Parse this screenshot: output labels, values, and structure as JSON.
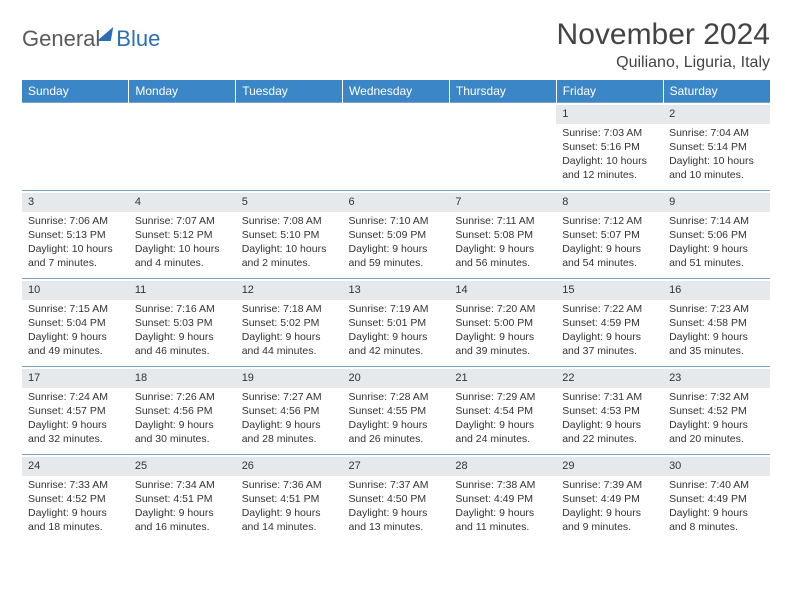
{
  "brand": {
    "word1": "General",
    "word2": "Blue"
  },
  "header": {
    "title": "November 2024",
    "location": "Quiliano, Liguria, Italy"
  },
  "colors": {
    "header_bg": "#3b86c7",
    "header_text": "#ffffff",
    "daynum_bg": "#e6e9eb",
    "border": "#7aa0c2",
    "brand_blue": "#2a6fb5",
    "text": "#333333",
    "background": "#ffffff"
  },
  "typography": {
    "title_fontsize": 30,
    "location_fontsize": 16,
    "dayheader_fontsize": 12,
    "cell_fontsize": 10.5,
    "daynum_fontsize": 11
  },
  "calendar": {
    "type": "table",
    "columns": [
      "Sunday",
      "Monday",
      "Tuesday",
      "Wednesday",
      "Thursday",
      "Friday",
      "Saturday"
    ],
    "weeks": [
      [
        null,
        null,
        null,
        null,
        null,
        {
          "n": "1",
          "sr": "Sunrise: 7:03 AM",
          "ss": "Sunset: 5:16 PM",
          "d1": "Daylight: 10 hours",
          "d2": "and 12 minutes."
        },
        {
          "n": "2",
          "sr": "Sunrise: 7:04 AM",
          "ss": "Sunset: 5:14 PM",
          "d1": "Daylight: 10 hours",
          "d2": "and 10 minutes."
        }
      ],
      [
        {
          "n": "3",
          "sr": "Sunrise: 7:06 AM",
          "ss": "Sunset: 5:13 PM",
          "d1": "Daylight: 10 hours",
          "d2": "and 7 minutes."
        },
        {
          "n": "4",
          "sr": "Sunrise: 7:07 AM",
          "ss": "Sunset: 5:12 PM",
          "d1": "Daylight: 10 hours",
          "d2": "and 4 minutes."
        },
        {
          "n": "5",
          "sr": "Sunrise: 7:08 AM",
          "ss": "Sunset: 5:10 PM",
          "d1": "Daylight: 10 hours",
          "d2": "and 2 minutes."
        },
        {
          "n": "6",
          "sr": "Sunrise: 7:10 AM",
          "ss": "Sunset: 5:09 PM",
          "d1": "Daylight: 9 hours",
          "d2": "and 59 minutes."
        },
        {
          "n": "7",
          "sr": "Sunrise: 7:11 AM",
          "ss": "Sunset: 5:08 PM",
          "d1": "Daylight: 9 hours",
          "d2": "and 56 minutes."
        },
        {
          "n": "8",
          "sr": "Sunrise: 7:12 AM",
          "ss": "Sunset: 5:07 PM",
          "d1": "Daylight: 9 hours",
          "d2": "and 54 minutes."
        },
        {
          "n": "9",
          "sr": "Sunrise: 7:14 AM",
          "ss": "Sunset: 5:06 PM",
          "d1": "Daylight: 9 hours",
          "d2": "and 51 minutes."
        }
      ],
      [
        {
          "n": "10",
          "sr": "Sunrise: 7:15 AM",
          "ss": "Sunset: 5:04 PM",
          "d1": "Daylight: 9 hours",
          "d2": "and 49 minutes."
        },
        {
          "n": "11",
          "sr": "Sunrise: 7:16 AM",
          "ss": "Sunset: 5:03 PM",
          "d1": "Daylight: 9 hours",
          "d2": "and 46 minutes."
        },
        {
          "n": "12",
          "sr": "Sunrise: 7:18 AM",
          "ss": "Sunset: 5:02 PM",
          "d1": "Daylight: 9 hours",
          "d2": "and 44 minutes."
        },
        {
          "n": "13",
          "sr": "Sunrise: 7:19 AM",
          "ss": "Sunset: 5:01 PM",
          "d1": "Daylight: 9 hours",
          "d2": "and 42 minutes."
        },
        {
          "n": "14",
          "sr": "Sunrise: 7:20 AM",
          "ss": "Sunset: 5:00 PM",
          "d1": "Daylight: 9 hours",
          "d2": "and 39 minutes."
        },
        {
          "n": "15",
          "sr": "Sunrise: 7:22 AM",
          "ss": "Sunset: 4:59 PM",
          "d1": "Daylight: 9 hours",
          "d2": "and 37 minutes."
        },
        {
          "n": "16",
          "sr": "Sunrise: 7:23 AM",
          "ss": "Sunset: 4:58 PM",
          "d1": "Daylight: 9 hours",
          "d2": "and 35 minutes."
        }
      ],
      [
        {
          "n": "17",
          "sr": "Sunrise: 7:24 AM",
          "ss": "Sunset: 4:57 PM",
          "d1": "Daylight: 9 hours",
          "d2": "and 32 minutes."
        },
        {
          "n": "18",
          "sr": "Sunrise: 7:26 AM",
          "ss": "Sunset: 4:56 PM",
          "d1": "Daylight: 9 hours",
          "d2": "and 30 minutes."
        },
        {
          "n": "19",
          "sr": "Sunrise: 7:27 AM",
          "ss": "Sunset: 4:56 PM",
          "d1": "Daylight: 9 hours",
          "d2": "and 28 minutes."
        },
        {
          "n": "20",
          "sr": "Sunrise: 7:28 AM",
          "ss": "Sunset: 4:55 PM",
          "d1": "Daylight: 9 hours",
          "d2": "and 26 minutes."
        },
        {
          "n": "21",
          "sr": "Sunrise: 7:29 AM",
          "ss": "Sunset: 4:54 PM",
          "d1": "Daylight: 9 hours",
          "d2": "and 24 minutes."
        },
        {
          "n": "22",
          "sr": "Sunrise: 7:31 AM",
          "ss": "Sunset: 4:53 PM",
          "d1": "Daylight: 9 hours",
          "d2": "and 22 minutes."
        },
        {
          "n": "23",
          "sr": "Sunrise: 7:32 AM",
          "ss": "Sunset: 4:52 PM",
          "d1": "Daylight: 9 hours",
          "d2": "and 20 minutes."
        }
      ],
      [
        {
          "n": "24",
          "sr": "Sunrise: 7:33 AM",
          "ss": "Sunset: 4:52 PM",
          "d1": "Daylight: 9 hours",
          "d2": "and 18 minutes."
        },
        {
          "n": "25",
          "sr": "Sunrise: 7:34 AM",
          "ss": "Sunset: 4:51 PM",
          "d1": "Daylight: 9 hours",
          "d2": "and 16 minutes."
        },
        {
          "n": "26",
          "sr": "Sunrise: 7:36 AM",
          "ss": "Sunset: 4:51 PM",
          "d1": "Daylight: 9 hours",
          "d2": "and 14 minutes."
        },
        {
          "n": "27",
          "sr": "Sunrise: 7:37 AM",
          "ss": "Sunset: 4:50 PM",
          "d1": "Daylight: 9 hours",
          "d2": "and 13 minutes."
        },
        {
          "n": "28",
          "sr": "Sunrise: 7:38 AM",
          "ss": "Sunset: 4:49 PM",
          "d1": "Daylight: 9 hours",
          "d2": "and 11 minutes."
        },
        {
          "n": "29",
          "sr": "Sunrise: 7:39 AM",
          "ss": "Sunset: 4:49 PM",
          "d1": "Daylight: 9 hours",
          "d2": "and 9 minutes."
        },
        {
          "n": "30",
          "sr": "Sunrise: 7:40 AM",
          "ss": "Sunset: 4:49 PM",
          "d1": "Daylight: 9 hours",
          "d2": "and 8 minutes."
        }
      ]
    ]
  }
}
